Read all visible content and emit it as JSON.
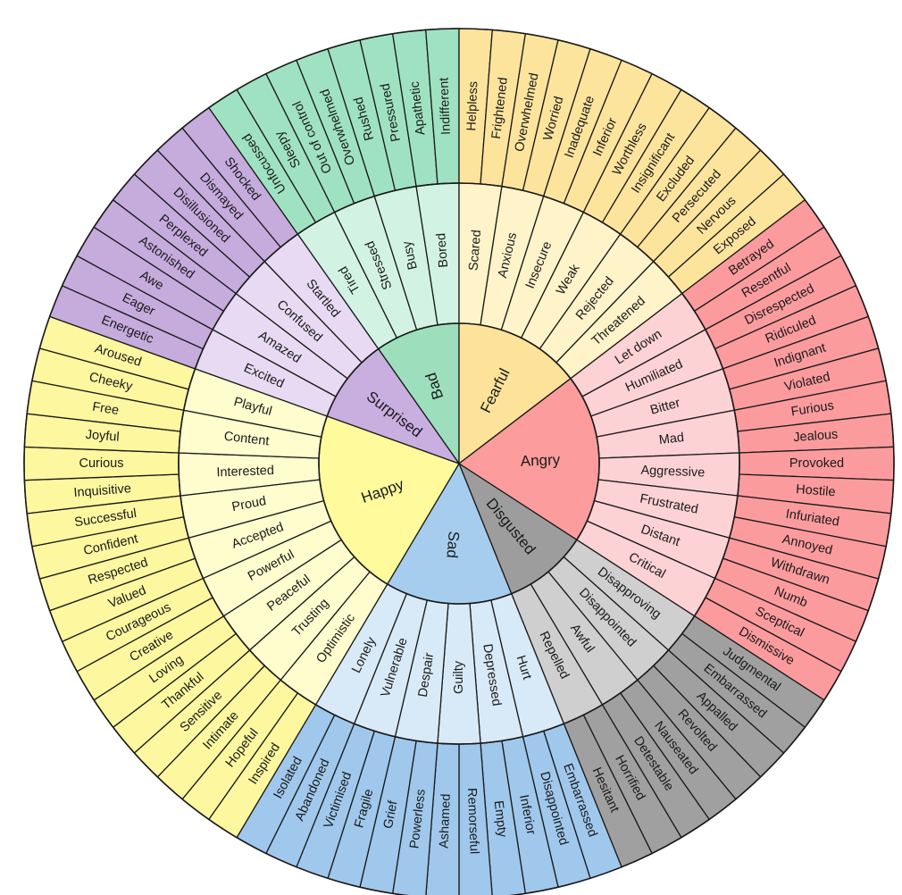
{
  "wheel": {
    "stroke_color": "#1a1a1a",
    "emotions": [
      {
        "core": "Bad",
        "colors": {
          "core": "#9ddfbd",
          "middle": "#d2f3e3",
          "outer": "#9fe2c1"
        },
        "middle": [
          "Tired",
          "Stressed",
          "Busy",
          "Bored"
        ],
        "outer": [
          "Unfocussed",
          "Sleepy",
          "Out of control",
          "Overwhelmed",
          "Rushed",
          "Pressured",
          "Apathetic",
          "Indifferent"
        ]
      },
      {
        "core": "Fearful",
        "colors": {
          "core": "#fde39a",
          "middle": "#fff3c9",
          "outer": "#fde49d"
        },
        "middle": [
          "Scared",
          "Anxious",
          "Insecure",
          "Weak",
          "Rejected",
          "Threatened"
        ],
        "outer": [
          "Helpless",
          "Frightened",
          "Overwhelmed",
          "Worried",
          "Inadequate",
          "Inferior",
          "Worthless",
          "Insignificant",
          "Excluded",
          "Persecuted",
          "Nervous",
          "Exposed"
        ]
      },
      {
        "core": "Angry",
        "colors": {
          "core": "#fc9c9c",
          "middle": "#fdd2d4",
          "outer": "#fc9b9e"
        },
        "middle": [
          "Let down",
          "Humiliated",
          "Bitter",
          "Mad",
          "Aggressive",
          "Frustrated",
          "Distant",
          "Critical"
        ],
        "outer": [
          "Betrayed",
          "Resentful",
          "Disrespected",
          "Ridiculed",
          "Indignant",
          "Violated",
          "Furious",
          "Jealous",
          "Provoked",
          "Hostile",
          "Infuriated",
          "Annoyed",
          "Withdrawn",
          "Numb",
          "Sceptical",
          "Dismissive"
        ]
      },
      {
        "core": "Disgusted",
        "colors": {
          "core": "#9d9d9d",
          "middle": "#cfcfcf",
          "outer": "#a0a0a0"
        },
        "middle": [
          "Disapproving",
          "Disappointed",
          "Awful",
          "Repelled"
        ],
        "outer": [
          "Judgmental",
          "Embarrassed",
          "Appalled",
          "Revolted",
          "Nauseated",
          "Detestable",
          "Horrified",
          "Hesitant"
        ]
      },
      {
        "core": "Sad",
        "colors": {
          "core": "#a6cdee",
          "middle": "#d8eaf8",
          "outer": "#9fc8ec"
        },
        "middle": [
          "Hurt",
          "Depressed",
          "Guilty",
          "Despair",
          "Vulnerable",
          "Lonely"
        ],
        "outer": [
          "Embarrassed",
          "Disappointed",
          "Inferior",
          "Empty",
          "Remorseful",
          "Ashamed",
          "Powerless",
          "Grief",
          "Fragile",
          "Victimised",
          "Abandoned",
          "Isolated"
        ]
      },
      {
        "core": "Happy",
        "colors": {
          "core": "#fffa9c",
          "middle": "#fffcce",
          "outer": "#fdf79f"
        },
        "middle": [
          "Optimistic",
          "Trusting",
          "Peaceful",
          "Powerful",
          "Accepted",
          "Proud",
          "Interested",
          "Content",
          "Playful"
        ],
        "outer": [
          "Inspired",
          "Hopeful",
          "Intimate",
          "Sensitive",
          "Thankful",
          "Loving",
          "Creative",
          "Courageous",
          "Valued",
          "Respected",
          "Confident",
          "Successful",
          "Inquisitive",
          "Curious",
          "Joyful",
          "Free",
          "Cheeky",
          "Aroused"
        ]
      },
      {
        "core": "Surprised",
        "colors": {
          "core": "#c9aee0",
          "middle": "#e7daf2",
          "outer": "#c6abdd"
        },
        "middle": [
          "Excited",
          "Amazed",
          "Confused",
          "Startled"
        ],
        "outer": [
          "Energetic",
          "Eager",
          "Awe",
          "Astonished",
          "Perplexed",
          "Disillusioned",
          "Dismayed",
          "Shocked"
        ]
      }
    ]
  }
}
